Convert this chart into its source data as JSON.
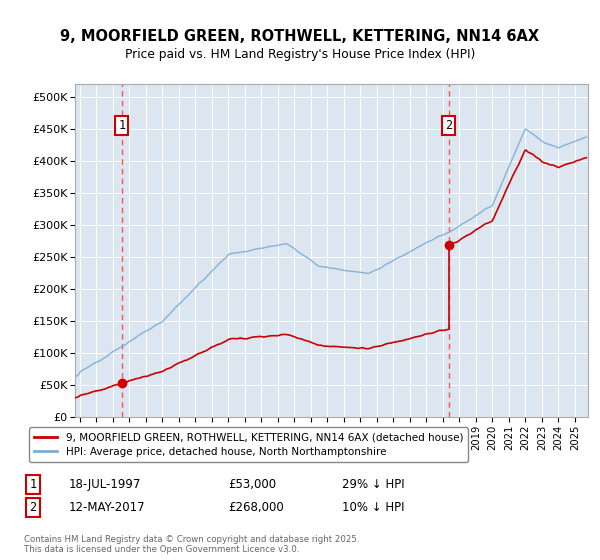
{
  "title_line1": "9, MOORFIELD GREEN, ROTHWELL, KETTERING, NN14 6AX",
  "title_line2": "Price paid vs. HM Land Registry's House Price Index (HPI)",
  "plot_bg_color": "#dce6f1",
  "ylim": [
    0,
    520000
  ],
  "yticks": [
    0,
    50000,
    100000,
    150000,
    200000,
    250000,
    300000,
    350000,
    400000,
    450000,
    500000
  ],
  "ytick_labels": [
    "£0",
    "£50K",
    "£100K",
    "£150K",
    "£200K",
    "£250K",
    "£300K",
    "£350K",
    "£400K",
    "£450K",
    "£500K"
  ],
  "xlim_start": 1994.7,
  "xlim_end": 2025.8,
  "xticks": [
    1995,
    1996,
    1997,
    1998,
    1999,
    2000,
    2001,
    2002,
    2003,
    2004,
    2005,
    2006,
    2007,
    2008,
    2009,
    2010,
    2011,
    2012,
    2013,
    2014,
    2015,
    2016,
    2017,
    2018,
    2019,
    2020,
    2021,
    2022,
    2023,
    2024,
    2025
  ],
  "transaction1_x": 1997.54,
  "transaction1_y": 53000,
  "transaction2_x": 2017.36,
  "transaction2_y": 268000,
  "red_line_color": "#cc0000",
  "blue_line_color": "#7aadd4",
  "marker_color": "#cc0000",
  "dashed_line_color": "#ff4444",
  "legend_label1": "9, MOORFIELD GREEN, ROTHWELL, KETTERING, NN14 6AX (detached house)",
  "legend_label2": "HPI: Average price, detached house, North Northamptonshire",
  "annotation1_date": "18-JUL-1997",
  "annotation1_price": "£53,000",
  "annotation1_hpi": "29% ↓ HPI",
  "annotation2_date": "12-MAY-2017",
  "annotation2_price": "£268,000",
  "annotation2_hpi": "10% ↓ HPI",
  "footer": "Contains HM Land Registry data © Crown copyright and database right 2025.\nThis data is licensed under the Open Government Licence v3.0."
}
